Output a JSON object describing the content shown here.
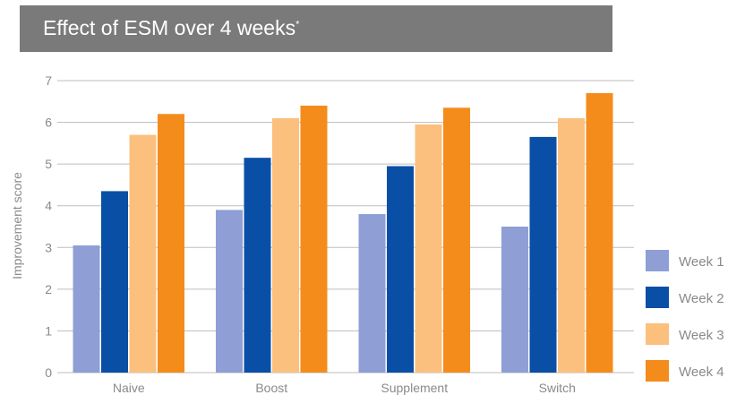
{
  "header": {
    "title": "Effect of ESM over 4 weeks",
    "title_mark": "*"
  },
  "colors": {
    "title_bar": "#7a7a7a",
    "grid": "#bdbdbd",
    "tick_text": "#8a8a8a"
  },
  "chart_data": {
    "type": "bar",
    "title": "Effect of ESM over 4 weeks*",
    "xlabel": "",
    "ylabel": "Improvement score",
    "ylim": [
      0,
      7
    ],
    "yticks": [
      0,
      1,
      2,
      3,
      4,
      5,
      6,
      7
    ],
    "grid": true,
    "legend_position": "right",
    "categories": [
      "Naive",
      "Boost",
      "Supplement",
      "Switch"
    ],
    "series": [
      {
        "name": "Week 1",
        "color": "#8f9fd5",
        "values": [
          3.05,
          3.9,
          3.8,
          3.5
        ]
      },
      {
        "name": "Week 2",
        "color": "#0a4fa6",
        "values": [
          4.35,
          5.15,
          4.95,
          5.65
        ]
      },
      {
        "name": "Week 3",
        "color": "#fbc07e",
        "values": [
          5.7,
          6.1,
          5.95,
          6.1
        ]
      },
      {
        "name": "Week 4",
        "color": "#f48c1c",
        "values": [
          6.2,
          6.4,
          6.35,
          6.7
        ]
      }
    ]
  }
}
